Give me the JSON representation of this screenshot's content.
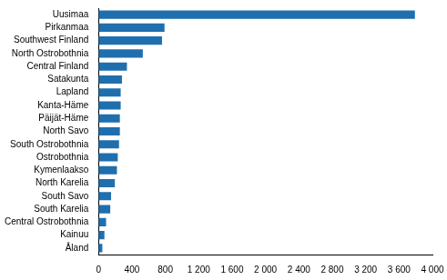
{
  "chart_data": {
    "type": "bar",
    "orientation": "horizontal",
    "categories": [
      "Uusimaa",
      "Pirkanmaa",
      "Southwest Finland",
      "North Ostrobothnia",
      "Central Finland",
      "Satakunta",
      "Lapland",
      "Kanta-Häme",
      "Päijät-Häme",
      "North Savo",
      "South Ostrobothnia",
      "Ostrobothnia",
      "Kymenlaakso",
      "North Karelia",
      "South Savo",
      "South Karelia",
      "Central Ostrobothnia",
      "Kainuu",
      "Åland"
    ],
    "values": [
      3790,
      790,
      760,
      530,
      340,
      280,
      265,
      265,
      255,
      255,
      245,
      230,
      220,
      195,
      150,
      140,
      90,
      70,
      45
    ],
    "color": "#1f6fae",
    "xlim": [
      0,
      4000
    ],
    "xticks": [
      0,
      400,
      800,
      {
        "value": 1200,
        "label": "1 200"
      },
      {
        "value": 1600,
        "label": "1 600"
      },
      {
        "value": 2000,
        "label": "2 000"
      },
      {
        "value": 2400,
        "label": "2 400"
      },
      {
        "value": 2800,
        "label": "2 800"
      },
      {
        "value": 3200,
        "label": "3 200"
      },
      {
        "value": 3600,
        "label": "3 600"
      },
      {
        "value": 4000,
        "label": "4 000"
      }
    ],
    "grid": false
  }
}
